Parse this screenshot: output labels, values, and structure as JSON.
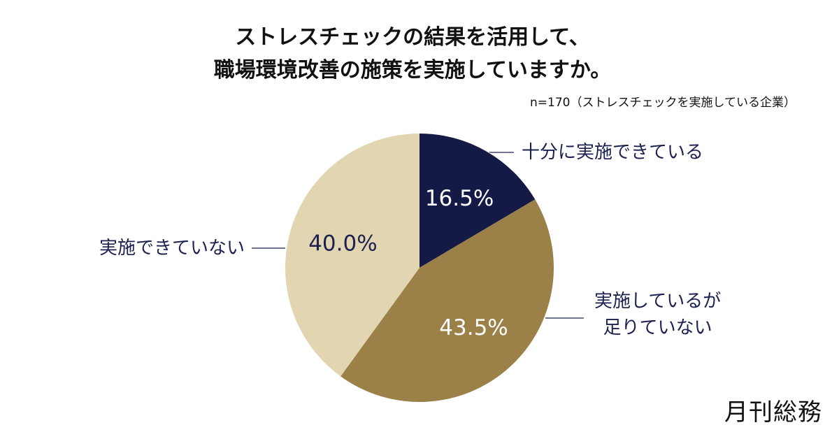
{
  "chart_data": {
    "type": "pie",
    "title": [
      "ストレスチェックの結果を活用して、",
      "職場環境改善の施策を実施していますか。"
    ],
    "subtitle": "n=170（ストレスチェックを実施している企業）",
    "categories": [
      "十分に実施できている",
      "実施しているが\n足りていない",
      "実施できていない"
    ],
    "values": [
      16.5,
      43.5,
      40.0
    ],
    "value_labels": [
      "16.5%",
      "43.5%",
      "40.0%"
    ],
    "colors": [
      "#141a45",
      "#9b8048",
      "#e2d6b2"
    ]
  },
  "brand": "月刊総務"
}
